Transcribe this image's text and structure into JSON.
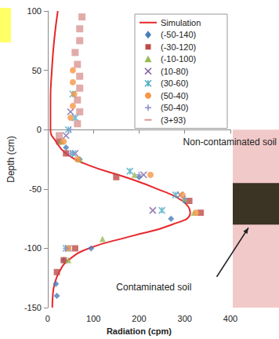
{
  "chart_data": {
    "type": "scatter",
    "x_label": "Radiation (cpm)",
    "y_label": "Depth (cm)",
    "xlim": [
      0,
      400
    ],
    "xticks": [
      0,
      100,
      200,
      300,
      400
    ],
    "ylim": [
      -150,
      100
    ],
    "yticks": [
      -150,
      -100,
      -50,
      0,
      50,
      100
    ],
    "grid": false,
    "legend": "top right",
    "series": [
      {
        "name": "Simulation",
        "type": "line",
        "color": "#e8262a",
        "line_style": "solid",
        "x": [
          22,
          14,
          9,
          6,
          6,
          18,
          40,
          90,
          170,
          240,
          295,
          312,
          272,
          180,
          90,
          45,
          25,
          15,
          11,
          10
        ],
        "values": [
          100,
          75,
          50,
          25,
          0,
          -10,
          -20,
          -30,
          -40,
          -50,
          -60,
          -70,
          -80,
          -90,
          -100,
          -110,
          -120,
          -130,
          -140,
          -150
        ]
      },
      {
        "name": "(-50-140)",
        "type": "scatter",
        "color": "#4a7ebb",
        "marker": "diamond",
        "x": [
          20,
          18,
          35,
          95,
          270,
          300,
          200,
          70,
          40
        ],
        "values": [
          -140,
          -130,
          -110,
          -100,
          -75,
          -60,
          -40,
          -25,
          -15
        ]
      },
      {
        "name": "(-30-120)",
        "type": "scatter",
        "color": "#be4b48",
        "marker": "square",
        "x": [
          20,
          35,
          60,
          335,
          310,
          150,
          40,
          25
        ],
        "values": [
          -120,
          -110,
          -100,
          -70,
          -60,
          -40,
          -20,
          -10
        ]
      },
      {
        "name": "(-10-100)",
        "type": "scatter",
        "color": "#98b954",
        "marker": "triangle",
        "x": [
          45,
          120,
          320,
          300,
          190,
          70,
          30
        ],
        "values": [
          -110,
          -92,
          -70,
          -58,
          -38,
          -25,
          -10
        ]
      },
      {
        "name": "(10-80)",
        "type": "scatter",
        "color": "#7d60a0",
        "marker": "x",
        "x": [
          45,
          230,
          290,
          210,
          60,
          40,
          50
        ],
        "values": [
          -100,
          -68,
          -55,
          -38,
          -20,
          -5,
          15
        ]
      },
      {
        "name": "(30-60)",
        "type": "scatter",
        "color": "#4bacc6",
        "marker": "asterisk",
        "x": [
          40,
          250,
          280,
          180,
          55,
          45,
          60,
          55
        ],
        "values": [
          -100,
          -68,
          -55,
          -35,
          -20,
          0,
          10,
          30
        ]
      },
      {
        "name": "(50-40)",
        "type": "scatter",
        "color": "#f79646",
        "marker": "circle",
        "x": [
          45,
          325,
          295,
          225,
          65,
          35,
          50,
          55,
          58,
          55,
          55
        ],
        "values": [
          -100,
          -70,
          -55,
          -38,
          -25,
          -10,
          10,
          20,
          30,
          40,
          50
        ]
      },
      {
        "name": "(50-40)",
        "type": "scatter",
        "color": "#8a8fc8",
        "marker": "plus",
        "x": [
          40,
          300,
          200,
          50,
          50
        ],
        "values": [
          -100,
          -58,
          -38,
          -20,
          0
        ]
      },
      {
        "name": "(3+93)",
        "type": "scatter",
        "color": "#d99694",
        "marker": "dash",
        "x": [
          25,
          65,
          70,
          65,
          70,
          70,
          65,
          60,
          70,
          70,
          75
        ],
        "values": [
          -5,
          5,
          15,
          25,
          35,
          45,
          55,
          65,
          75,
          85,
          95
        ]
      }
    ],
    "annotations": [
      "Non-contaminated soil",
      "Contaminated soil"
    ],
    "soil_column": {
      "depth_range": [
        -150,
        0
      ],
      "contaminated_range": [
        -80,
        -45
      ]
    }
  }
}
